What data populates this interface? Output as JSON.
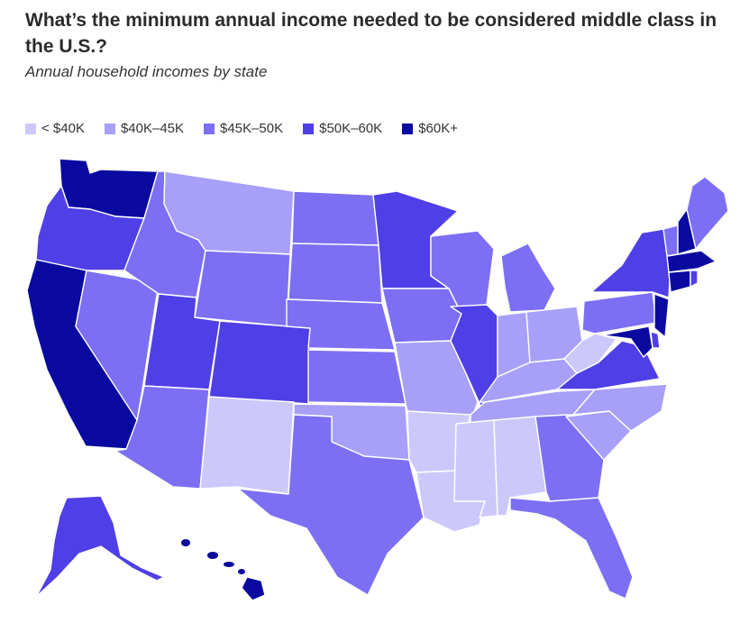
{
  "header": {
    "title": "What’s the minimum annual income needed to be considered middle class in the U.S.?",
    "subtitle": "Annual household incomes by state"
  },
  "legend": [
    {
      "label": "< $40K",
      "color": "#cdc8fb"
    },
    {
      "label": "$40K–45K",
      "color": "#a89ff8"
    },
    {
      "label": "$45K–50K",
      "color": "#7c6ff4"
    },
    {
      "label": "$50K–60K",
      "color": "#4f3fe6"
    },
    {
      "label": "$60K+",
      "color": "#0a0aa0"
    }
  ],
  "map_data": {
    "type": "choropleth",
    "region": "United States",
    "states": {
      "WA": 4,
      "OR": 3,
      "CA": 4,
      "NV": 2,
      "ID": 2,
      "MT": 1,
      "WY": 2,
      "UT": 3,
      "AZ": 2,
      "CO": 3,
      "NM": 0,
      "ND": 2,
      "SD": 2,
      "NE": 2,
      "KS": 2,
      "OK": 1,
      "TX": 2,
      "MN": 3,
      "IA": 2,
      "MO": 1,
      "AR": 0,
      "LA": 0,
      "WI": 2,
      "IL": 3,
      "MI": 2,
      "IN": 1,
      "OH": 1,
      "KY": 1,
      "TN": 1,
      "MS": 0,
      "AL": 0,
      "GA": 2,
      "FL": 2,
      "SC": 1,
      "NC": 1,
      "VA": 3,
      "WV": 0,
      "PA": 2,
      "NY": 3,
      "VT": 2,
      "NH": 4,
      "ME": 2,
      "MA": 4,
      "RI": 3,
      "CT": 4,
      "NJ": 4,
      "DE": 3,
      "MD": 4,
      "AK": 3,
      "HI": 4
    }
  }
}
